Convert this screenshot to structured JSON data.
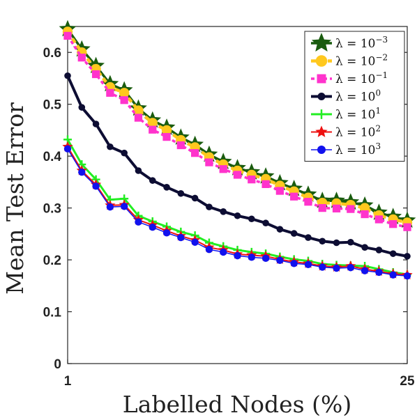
{
  "chart_data": {
    "type": "line",
    "title": "",
    "xlabel": "Labelled Nodes (%)",
    "ylabel": "Mean Test Error",
    "xlim": [
      1,
      25
    ],
    "ylim": [
      0,
      0.65
    ],
    "xticks": [
      1,
      25
    ],
    "xtick_labels": [
      "1",
      "25"
    ],
    "yticks": [
      0,
      0.1,
      0.2,
      0.3,
      0.4,
      0.5,
      0.6
    ],
    "ytick_labels": [
      "0",
      "0.1",
      "0.2",
      "0.3",
      "0.4",
      "0.5",
      "0.6"
    ],
    "grid": false,
    "legend_position": "top-right",
    "x": [
      1,
      2,
      3,
      4,
      5,
      6,
      7,
      8,
      9,
      10,
      11,
      12,
      13,
      14,
      15,
      16,
      17,
      18,
      19,
      20,
      21,
      22,
      23,
      24,
      25
    ],
    "series": [
      {
        "label_base": "λ = 10",
        "label_exp": "−3",
        "color": "#1a5c0f",
        "marker": "star",
        "values": [
          0.645,
          0.606,
          0.574,
          0.539,
          0.527,
          0.492,
          0.469,
          0.455,
          0.436,
          0.422,
          0.403,
          0.389,
          0.377,
          0.369,
          0.361,
          0.348,
          0.337,
          0.326,
          0.314,
          0.314,
          0.311,
          0.305,
          0.291,
          0.283,
          0.276
        ]
      },
      {
        "label_base": "λ = 10",
        "label_exp": "−2",
        "color": "#ffc81e",
        "marker": "circle",
        "values": [
          0.64,
          0.6,
          0.568,
          0.533,
          0.522,
          0.488,
          0.464,
          0.45,
          0.431,
          0.417,
          0.398,
          0.384,
          0.372,
          0.364,
          0.356,
          0.343,
          0.332,
          0.32,
          0.31,
          0.309,
          0.306,
          0.3,
          0.286,
          0.278,
          0.272
        ]
      },
      {
        "label_base": "λ = 10",
        "label_exp": "−1",
        "color": "#ff33cc",
        "marker": "square",
        "values": [
          0.632,
          0.59,
          0.558,
          0.522,
          0.508,
          0.474,
          0.451,
          0.437,
          0.421,
          0.406,
          0.388,
          0.375,
          0.364,
          0.355,
          0.346,
          0.333,
          0.322,
          0.312,
          0.3,
          0.299,
          0.298,
          0.288,
          0.278,
          0.269,
          0.263
        ]
      },
      {
        "label_base": "λ = 10",
        "label_exp": "0",
        "color": "#0d0d33",
        "marker": "circle",
        "values": [
          0.555,
          0.494,
          0.462,
          0.418,
          0.406,
          0.372,
          0.353,
          0.34,
          0.328,
          0.319,
          0.302,
          0.293,
          0.285,
          0.279,
          0.271,
          0.259,
          0.251,
          0.243,
          0.236,
          0.233,
          0.234,
          0.224,
          0.219,
          0.212,
          0.207
        ]
      },
      {
        "label_base": "λ = 10",
        "label_exp": "1",
        "color": "#22ee22",
        "marker": "plus",
        "values": [
          0.432,
          0.384,
          0.355,
          0.316,
          0.318,
          0.285,
          0.274,
          0.264,
          0.254,
          0.247,
          0.233,
          0.226,
          0.219,
          0.215,
          0.212,
          0.206,
          0.201,
          0.198,
          0.192,
          0.19,
          0.189,
          0.188,
          0.182,
          0.176,
          0.172
        ]
      },
      {
        "label_base": "λ = 10",
        "label_exp": "2",
        "color": "#ee1111",
        "marker": "star",
        "values": [
          0.418,
          0.372,
          0.345,
          0.305,
          0.306,
          0.277,
          0.267,
          0.256,
          0.246,
          0.238,
          0.224,
          0.219,
          0.211,
          0.209,
          0.207,
          0.201,
          0.196,
          0.193,
          0.188,
          0.186,
          0.188,
          0.182,
          0.178,
          0.173,
          0.171
        ]
      },
      {
        "label_base": "λ = 10",
        "label_exp": "3",
        "color": "#1111ee",
        "marker": "circle",
        "values": [
          0.414,
          0.369,
          0.342,
          0.302,
          0.303,
          0.273,
          0.263,
          0.252,
          0.243,
          0.234,
          0.22,
          0.215,
          0.208,
          0.205,
          0.203,
          0.199,
          0.193,
          0.191,
          0.186,
          0.184,
          0.185,
          0.179,
          0.176,
          0.171,
          0.169
        ]
      }
    ]
  }
}
